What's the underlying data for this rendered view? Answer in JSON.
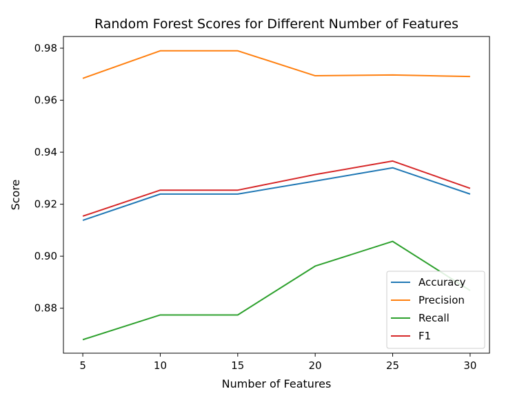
{
  "chart_data": {
    "type": "line",
    "title": "Random Forest Scores for Different Number of Features",
    "xlabel": "Number of Features",
    "ylabel": "Score",
    "x": [
      5,
      10,
      15,
      20,
      25,
      30
    ],
    "x_ticks": [
      "5",
      "10",
      "15",
      "20",
      "25",
      "30"
    ],
    "y_ticks": [
      "0.88",
      "0.90",
      "0.92",
      "0.94",
      "0.96",
      "0.98"
    ],
    "y_tick_values": [
      0.88,
      0.9,
      0.92,
      0.94,
      0.96,
      0.98
    ],
    "xlim": [
      3.75,
      31.25
    ],
    "ylim": [
      0.8627,
      0.9845
    ],
    "grid": false,
    "legend_position": "lower-right",
    "series": [
      {
        "name": "Accuracy",
        "color": "#1f77b4",
        "values": [
          0.9138,
          0.9239,
          0.9239,
          0.9289,
          0.934,
          0.9239
        ]
      },
      {
        "name": "Precision",
        "color": "#ff7f0e",
        "values": [
          0.9684,
          0.979,
          0.979,
          0.9694,
          0.9697,
          0.9691
        ]
      },
      {
        "name": "Recall",
        "color": "#2ca02c",
        "values": [
          0.8679,
          0.8774,
          0.8774,
          0.8962,
          0.9057,
          0.8868
        ]
      },
      {
        "name": "F1",
        "color": "#d62728",
        "values": [
          0.9154,
          0.9254,
          0.9254,
          0.9314,
          0.9366,
          0.9261
        ]
      }
    ]
  }
}
